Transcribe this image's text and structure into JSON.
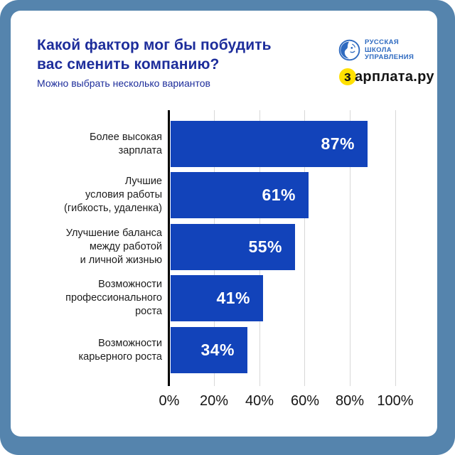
{
  "header": {
    "title_lines": [
      "Какой фактор мог бы побудить",
      "вас сменить компанию?"
    ],
    "subtitle": "Можно выбрать несколько вариантов",
    "title_color": "#1d2d9b"
  },
  "logos": {
    "rsu": {
      "name": "РУССКАЯ\nШКОЛА\nУПРАВЛЕНИЯ",
      "icon": "rsu-globe-face-icon",
      "color": "#2e6ac0"
    },
    "zarplata": {
      "first_letter": "з",
      "rest": "арплата.ру",
      "accent_color": "#ffe000",
      "text_color": "#141414"
    }
  },
  "chart_data": {
    "type": "bar",
    "orientation": "horizontal",
    "title": "Какой фактор мог бы побудить вас сменить компанию?",
    "subtitle": "Можно выбрать несколько вариантов",
    "categories": [
      "Более высокая зарплата",
      "Лучшие условия работы (гибкость, удаленка)",
      "Улучшение баланса между работой и личной жизнью",
      "Возможности профессионального роста",
      "Возможности карьерного роста"
    ],
    "values": [
      87,
      61,
      55,
      41,
      34
    ],
    "rows": [
      {
        "label": "Более высокая\nзарплата",
        "value": 87,
        "value_label": "87%"
      },
      {
        "label": "Лучшие\nусловия работы\n(гибкость, удаленка)",
        "value": 61,
        "value_label": "61%"
      },
      {
        "label": "Улучшение баланса\nмежду работой\nи личной жизнью",
        "value": 55,
        "value_label": "55%"
      },
      {
        "label": "Возможности\nпрофессионального\nроста",
        "value": 41,
        "value_label": "41%"
      },
      {
        "label": "Возможности\nкарьерного роста",
        "value": 34,
        "value_label": "34%"
      }
    ],
    "xticks": [
      "0%",
      "20%",
      "40%",
      "60%",
      "80%",
      "100%"
    ],
    "xlim": [
      0,
      100
    ],
    "grid": true,
    "bar_color": "#1243ba",
    "frame_color": "#5584ad"
  }
}
